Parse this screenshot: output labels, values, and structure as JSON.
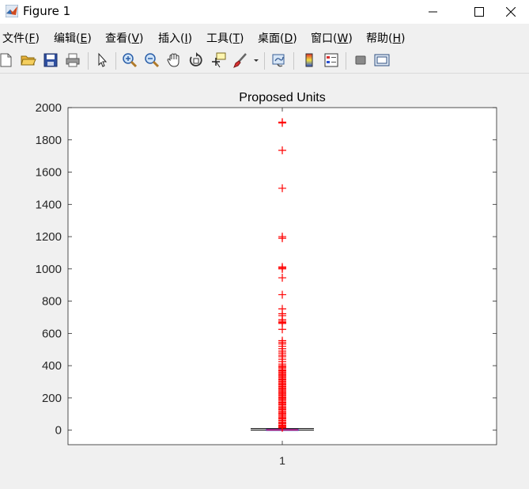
{
  "window": {
    "title": "Figure 1"
  },
  "menu": {
    "items": [
      {
        "label": "文件",
        "mnemonic": "F"
      },
      {
        "label": "编辑",
        "mnemonic": "E"
      },
      {
        "label": "查看",
        "mnemonic": "V"
      },
      {
        "label": "插入",
        "mnemonic": "I"
      },
      {
        "label": "工具",
        "mnemonic": "T"
      },
      {
        "label": "桌面",
        "mnemonic": "D"
      },
      {
        "label": "窗口",
        "mnemonic": "W"
      },
      {
        "label": "帮助",
        "mnemonic": "H"
      }
    ]
  },
  "toolbar": {
    "icons": [
      "new-figure-icon",
      "open-file-icon",
      "save-icon",
      "print-icon",
      "edit-plot-arrow-icon",
      "zoom-in-icon",
      "zoom-out-icon",
      "pan-hand-icon",
      "rotate-3d-icon",
      "data-cursor-icon",
      "brush-icon",
      "brush-dropdown-icon",
      "link-plot-icon",
      "colorbar-icon",
      "legend-icon",
      "hide-plot-tools-icon",
      "show-plot-tools-icon"
    ]
  },
  "colors": {
    "outlier": "#ff0000",
    "median": "#ff0000",
    "box": "#0000ff",
    "axis": "#262626",
    "background": "#f0f0f0"
  },
  "chart_data": {
    "type": "box",
    "title": "Proposed Units",
    "xlabel": "",
    "ylabel": "",
    "categories": [
      "1"
    ],
    "ylim": [
      -90,
      2000
    ],
    "yticks": [
      0,
      200,
      400,
      600,
      800,
      1000,
      1200,
      1400,
      1600,
      1800,
      2000
    ],
    "box": {
      "q1": 1,
      "median": 2,
      "q3": 4,
      "whisker_low": 0,
      "whisker_high": 10
    },
    "outliers": [
      1910,
      1905,
      1735,
      1500,
      1200,
      1190,
      1012,
      1005,
      1000,
      945,
      840,
      752,
      722,
      710,
      685,
      675,
      668,
      662,
      625,
      555,
      545,
      535,
      520,
      505,
      490,
      478,
      465,
      455,
      440,
      425,
      410,
      400,
      392,
      385,
      375,
      368,
      360,
      352,
      345,
      338,
      330,
      322,
      315,
      308,
      300,
      292,
      285,
      278,
      270,
      262,
      255,
      248,
      240,
      232,
      225,
      218,
      210,
      202,
      195,
      188,
      180,
      172,
      165,
      158,
      150,
      142,
      135,
      128,
      120,
      112,
      105,
      98,
      90,
      82,
      75,
      68,
      60,
      52,
      45,
      38,
      30,
      24,
      18,
      14
    ],
    "grid": false
  }
}
